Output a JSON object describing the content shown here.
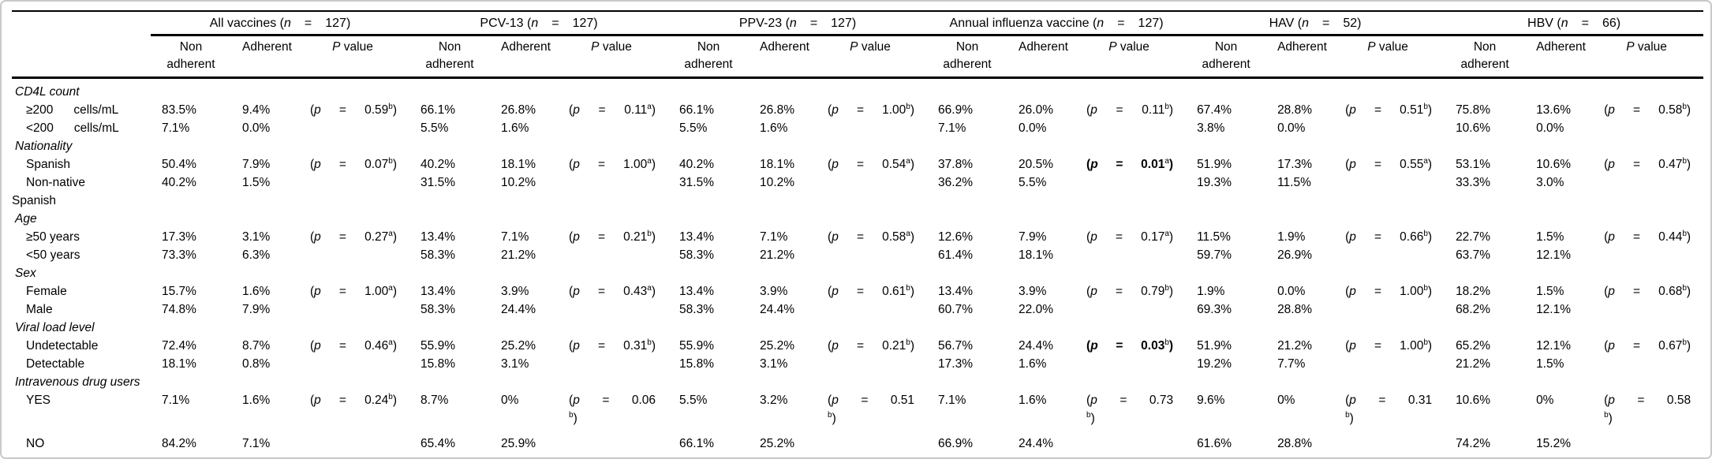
{
  "colors": {
    "text": "#000000",
    "rule": "#000000",
    "frame_border": "#c9c9c9",
    "background": "#ffffff"
  },
  "chart_data": {
    "type": "table",
    "tokens": {
      "open": "(",
      "p": "p",
      "eq": "=",
      "close": ")"
    },
    "groups": [
      {
        "name": "All vaccines",
        "n": "127"
      },
      {
        "name": "PCV-13",
        "n": "127"
      },
      {
        "name": "PPV-23",
        "n": "127"
      },
      {
        "name": "Annual influenza vaccine",
        "n": "127"
      },
      {
        "name": "HAV",
        "n": "52"
      },
      {
        "name": "HBV",
        "n": "66"
      }
    ],
    "subheaders": {
      "non": "Non adherent",
      "adh": "Adherent",
      "p_lead": "P",
      "p_tail": " value"
    },
    "sections": [
      {
        "label": "CD4L count",
        "rows": [
          {
            "label": "≥200",
            "unit": "cells/mL",
            "cells": [
              {
                "non": "83.5%",
                "adh": "9.4%",
                "p": "0.59",
                "ps": "b"
              },
              {
                "non": "66.1%",
                "adh": "26.8%",
                "p": "0.11",
                "ps": "a"
              },
              {
                "non": "66.1%",
                "adh": "26.8%",
                "p": "1.00",
                "ps": "b"
              },
              {
                "non": "66.9%",
                "adh": "26.0%",
                "p": "0.11",
                "ps": "b"
              },
              {
                "non": "67.4%",
                "adh": "28.8%",
                "p": "0.51",
                "ps": "b"
              },
              {
                "non": "75.8%",
                "adh": "13.6%",
                "p": "0.58",
                "ps": "b"
              }
            ]
          },
          {
            "label": "<200",
            "unit": "cells/mL",
            "cells": [
              {
                "non": "7.1%",
                "adh": "0.0%"
              },
              {
                "non": "5.5%",
                "adh": "1.6%"
              },
              {
                "non": "5.5%",
                "adh": "1.6%"
              },
              {
                "non": "7.1%",
                "adh": "0.0%"
              },
              {
                "non": "3.8%",
                "adh": "0.0%"
              },
              {
                "non": "10.6%",
                "adh": "0.0%"
              }
            ]
          }
        ]
      },
      {
        "label": "Nationality",
        "rows": [
          {
            "label": "Spanish",
            "cells": [
              {
                "non": "50.4%",
                "adh": "7.9%",
                "p": "0.07",
                "ps": "b"
              },
              {
                "non": "40.2%",
                "adh": "18.1%",
                "p": "1.00",
                "ps": "a"
              },
              {
                "non": "40.2%",
                "adh": "18.1%",
                "p": "0.54",
                "ps": "a"
              },
              {
                "non": "37.8%",
                "adh": "20.5%",
                "p": "0.01",
                "ps": "a",
                "bold": true
              },
              {
                "non": "51.9%",
                "adh": "17.3%",
                "p": "0.55",
                "ps": "a"
              },
              {
                "non": "53.1%",
                "adh": "10.6%",
                "p": "0.47",
                "ps": "b"
              }
            ]
          },
          {
            "label": "Non-native",
            "wrap_label": "Spanish",
            "cells": [
              {
                "non": "40.2%",
                "adh": "1.5%"
              },
              {
                "non": "31.5%",
                "adh": "10.2%"
              },
              {
                "non": "31.5%",
                "adh": "10.2%"
              },
              {
                "non": "36.2%",
                "adh": "5.5%"
              },
              {
                "non": "19.3%",
                "adh": "11.5%"
              },
              {
                "non": "33.3%",
                "adh": "3.0%"
              }
            ]
          }
        ]
      },
      {
        "label": "Age",
        "rows": [
          {
            "label": "≥50 years",
            "cells": [
              {
                "non": "17.3%",
                "adh": "3.1%",
                "p": "0.27",
                "ps": "a"
              },
              {
                "non": "13.4%",
                "adh": "7.1%",
                "p": "0.21",
                "ps": "b"
              },
              {
                "non": "13.4%",
                "adh": "7.1%",
                "p": "0.58",
                "ps": "a"
              },
              {
                "non": "12.6%",
                "adh": "7.9%",
                "p": "0.17",
                "ps": "a"
              },
              {
                "non": "11.5%",
                "adh": "1.9%",
                "p": "0.66",
                "ps": "b"
              },
              {
                "non": "22.7%",
                "adh": "1.5%",
                "p": "0.44",
                "ps": "b"
              }
            ]
          },
          {
            "label": "<50 years",
            "cells": [
              {
                "non": "73.3%",
                "adh": "6.3%"
              },
              {
                "non": "58.3%",
                "adh": "21.2%"
              },
              {
                "non": "58.3%",
                "adh": "21.2%"
              },
              {
                "non": "61.4%",
                "adh": "18.1%"
              },
              {
                "non": "59.7%",
                "adh": "26.9%"
              },
              {
                "non": "63.7%",
                "adh": "12.1%"
              }
            ]
          }
        ]
      },
      {
        "label": "Sex",
        "rows": [
          {
            "label": "Female",
            "cells": [
              {
                "non": "15.7%",
                "adh": "1.6%",
                "p": "1.00",
                "ps": "a"
              },
              {
                "non": "13.4%",
                "adh": "3.9%",
                "p": "0.43",
                "ps": "a"
              },
              {
                "non": "13.4%",
                "adh": "3.9%",
                "p": "0.61",
                "ps": "b"
              },
              {
                "non": "13.4%",
                "adh": "3.9%",
                "p": "0.79",
                "ps": "b"
              },
              {
                "non": "1.9%",
                "adh": "0.0%",
                "p": "1.00",
                "ps": "b"
              },
              {
                "non": "18.2%",
                "adh": "1.5%",
                "p": "0.68",
                "ps": "b"
              }
            ]
          },
          {
            "label": "Male",
            "cells": [
              {
                "non": "74.8%",
                "adh": "7.9%"
              },
              {
                "non": "58.3%",
                "adh": "24.4%"
              },
              {
                "non": "58.3%",
                "adh": "24.4%"
              },
              {
                "non": "60.7%",
                "adh": "22.0%"
              },
              {
                "non": "69.3%",
                "adh": "28.8%"
              },
              {
                "non": "68.2%",
                "adh": "12.1%"
              }
            ]
          }
        ]
      },
      {
        "label": "Viral load level",
        "rows": [
          {
            "label": "Undetectable",
            "cells": [
              {
                "non": "72.4%",
                "adh": "8.7%",
                "p": "0.46",
                "ps": "a"
              },
              {
                "non": "55.9%",
                "adh": "25.2%",
                "p": "0.31",
                "ps": "b"
              },
              {
                "non": "55.9%",
                "adh": "25.2%",
                "p": "0.21",
                "ps": "b"
              },
              {
                "non": "56.7%",
                "adh": "24.4%",
                "p": "0.03",
                "ps": "b",
                "bold": true
              },
              {
                "non": "51.9%",
                "adh": "21.2%",
                "p": "1.00",
                "ps": "b"
              },
              {
                "non": "65.2%",
                "adh": "12.1%",
                "p": "0.67",
                "ps": "b"
              }
            ]
          },
          {
            "label": "Detectable",
            "cells": [
              {
                "non": "18.1%",
                "adh": "0.8%"
              },
              {
                "non": "15.8%",
                "adh": "3.1%"
              },
              {
                "non": "15.8%",
                "adh": "3.1%"
              },
              {
                "non": "17.3%",
                "adh": "1.6%"
              },
              {
                "non": "19.2%",
                "adh": "7.7%"
              },
              {
                "non": "21.2%",
                "adh": "1.5%"
              }
            ]
          }
        ]
      },
      {
        "label": "Intravenous drug users",
        "rows": [
          {
            "label": "YES",
            "cells": [
              {
                "non": "7.1%",
                "adh": "1.6%",
                "p": "0.24",
                "ps": "b"
              },
              {
                "non": "8.7%",
                "adh": "0%",
                "p": "0.06",
                "ps": "b",
                "wrap": true
              },
              {
                "non": "5.5%",
                "adh": "3.2%",
                "p": "0.51",
                "ps": "b",
                "wrap": true
              },
              {
                "non": "7.1%",
                "adh": "1.6%",
                "p": "0.73",
                "ps": "b",
                "wrap": true
              },
              {
                "non": "9.6%",
                "adh": "0%",
                "p": "0.31",
                "ps": "b",
                "wrap": true
              },
              {
                "non": "10.6%",
                "adh": "0%",
                "p": "0.58",
                "ps": "b",
                "wrap": true
              }
            ]
          },
          {
            "label": "NO",
            "gap": true,
            "cells": [
              {
                "non": "84.2%",
                "adh": "7.1%"
              },
              {
                "non": "65.4%",
                "adh": "25.9%"
              },
              {
                "non": "66.1%",
                "adh": "25.2%"
              },
              {
                "non": "66.9%",
                "adh": "24.4%"
              },
              {
                "non": "61.6%",
                "adh": "28.8%"
              },
              {
                "non": "74.2%",
                "adh": "15.2%"
              }
            ]
          }
        ]
      }
    ]
  }
}
